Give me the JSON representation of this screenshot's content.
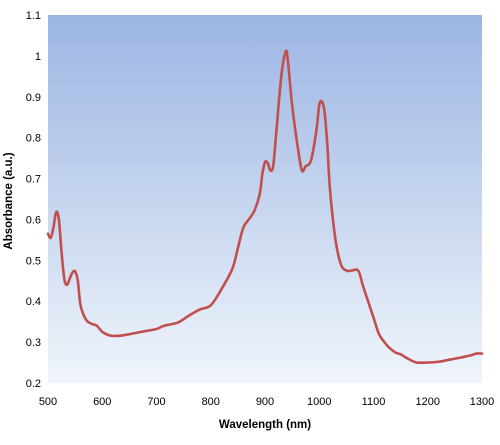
{
  "chart_data": {
    "type": "line",
    "title": "",
    "xlabel": "Wavelength (nm)",
    "ylabel": "Absorbance (a.u.)",
    "xlim": [
      500,
      1300
    ],
    "ylim": [
      0.2,
      1.1
    ],
    "x_ticks": [
      500,
      600,
      700,
      800,
      900,
      1000,
      1100,
      1200,
      1300
    ],
    "y_ticks": [
      0.2,
      0.3,
      0.4,
      0.5,
      0.6,
      0.7,
      0.8,
      0.9,
      1,
      1.1
    ],
    "grid": false,
    "legend": "none",
    "plot_background": "vertical gradient #9bb5e3 (top) to #f0f5fb (bottom)",
    "series": [
      {
        "color": "#c0504d",
        "points": [
          [
            500,
            0.565
          ],
          [
            505,
            0.555
          ],
          [
            510,
            0.58
          ],
          [
            515,
            0.618
          ],
          [
            520,
            0.6
          ],
          [
            525,
            0.52
          ],
          [
            530,
            0.455
          ],
          [
            535,
            0.44
          ],
          [
            540,
            0.455
          ],
          [
            545,
            0.47
          ],
          [
            550,
            0.473
          ],
          [
            555,
            0.45
          ],
          [
            560,
            0.39
          ],
          [
            570,
            0.355
          ],
          [
            580,
            0.345
          ],
          [
            590,
            0.34
          ],
          [
            600,
            0.325
          ],
          [
            610,
            0.318
          ],
          [
            620,
            0.315
          ],
          [
            640,
            0.317
          ],
          [
            660,
            0.322
          ],
          [
            680,
            0.327
          ],
          [
            700,
            0.332
          ],
          [
            710,
            0.338
          ],
          [
            720,
            0.342
          ],
          [
            740,
            0.348
          ],
          [
            760,
            0.365
          ],
          [
            780,
            0.38
          ],
          [
            800,
            0.39
          ],
          [
            820,
            0.43
          ],
          [
            840,
            0.48
          ],
          [
            850,
            0.53
          ],
          [
            860,
            0.58
          ],
          [
            870,
            0.6
          ],
          [
            880,
            0.62
          ],
          [
            890,
            0.66
          ],
          [
            895,
            0.71
          ],
          [
            900,
            0.74
          ],
          [
            905,
            0.738
          ],
          [
            910,
            0.72
          ],
          [
            915,
            0.73
          ],
          [
            920,
            0.8
          ],
          [
            930,
            0.95
          ],
          [
            938,
            1.01
          ],
          [
            942,
            0.99
          ],
          [
            950,
            0.88
          ],
          [
            960,
            0.78
          ],
          [
            968,
            0.72
          ],
          [
            975,
            0.73
          ],
          [
            985,
            0.745
          ],
          [
            995,
            0.82
          ],
          [
            1000,
            0.88
          ],
          [
            1005,
            0.888
          ],
          [
            1010,
            0.86
          ],
          [
            1015,
            0.78
          ],
          [
            1020,
            0.67
          ],
          [
            1030,
            0.55
          ],
          [
            1040,
            0.49
          ],
          [
            1050,
            0.475
          ],
          [
            1060,
            0.475
          ],
          [
            1070,
            0.477
          ],
          [
            1075,
            0.465
          ],
          [
            1080,
            0.44
          ],
          [
            1090,
            0.4
          ],
          [
            1100,
            0.36
          ],
          [
            1110,
            0.32
          ],
          [
            1120,
            0.3
          ],
          [
            1130,
            0.285
          ],
          [
            1140,
            0.275
          ],
          [
            1150,
            0.27
          ],
          [
            1160,
            0.262
          ],
          [
            1170,
            0.255
          ],
          [
            1180,
            0.25
          ],
          [
            1200,
            0.25
          ],
          [
            1220,
            0.252
          ],
          [
            1240,
            0.257
          ],
          [
            1260,
            0.262
          ],
          [
            1270,
            0.265
          ],
          [
            1280,
            0.268
          ],
          [
            1290,
            0.272
          ],
          [
            1300,
            0.272
          ]
        ]
      }
    ]
  }
}
